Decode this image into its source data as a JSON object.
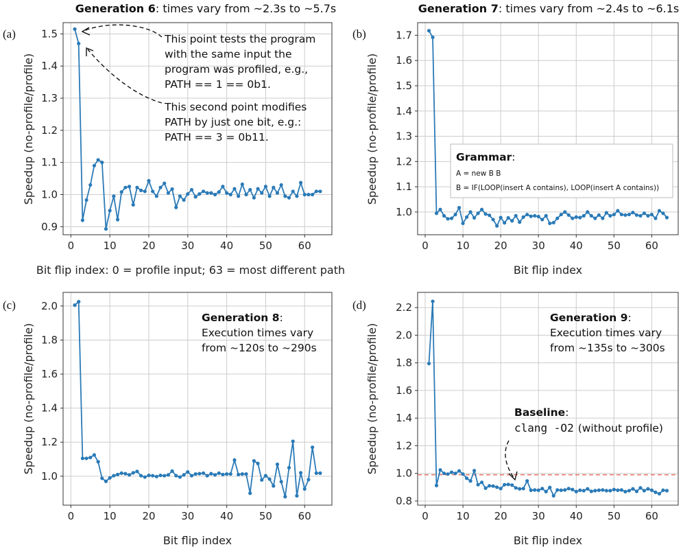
{
  "chart_data": [
    {
      "id": "a",
      "type": "line",
      "panel_label": "(a)",
      "title_bold": "Generation 6",
      "title_rest": ": times vary from ~2.3s to ~5.7s",
      "xlabel": "Bit flip index: 0 = profile input; 63 = most different path",
      "ylabel": "Speedup (no-profile/profile)",
      "xlim": [
        -2,
        67
      ],
      "ylim": [
        0.875,
        1.535
      ],
      "xticks": [
        0,
        10,
        20,
        30,
        40,
        50,
        60
      ],
      "yticks": [
        0.9,
        1.0,
        1.1,
        1.2,
        1.3,
        1.4,
        1.5
      ],
      "ytick_labels": [
        "0.9",
        "1.0",
        "1.1",
        "1.2",
        "1.3",
        "1.4",
        "1.5"
      ],
      "grid": true,
      "x": [
        1,
        2,
        3,
        4,
        5,
        6,
        7,
        8,
        9,
        10,
        11,
        12,
        13,
        14,
        15,
        16,
        17,
        18,
        19,
        20,
        21,
        22,
        23,
        24,
        25,
        26,
        27,
        28,
        29,
        30,
        31,
        32,
        33,
        34,
        35,
        36,
        37,
        38,
        39,
        40,
        41,
        42,
        43,
        44,
        45,
        46,
        47,
        48,
        49,
        50,
        51,
        52,
        53,
        54,
        55,
        56,
        57,
        58,
        59,
        60,
        61,
        62,
        63,
        64
      ],
      "values": [
        1.515,
        1.47,
        0.92,
        0.983,
        1.03,
        1.09,
        1.108,
        1.1,
        0.893,
        0.95,
        0.995,
        0.922,
        1.008,
        1.022,
        1.025,
        0.968,
        1.022,
        1.013,
        1.01,
        1.043,
        1.01,
        0.995,
        1.022,
        1.035,
        1.005,
        1.017,
        0.96,
        0.995,
        0.983,
        1.002,
        1.015,
        0.993,
        1.002,
        1.01,
        1.005,
        1.005,
        1.0,
        1.008,
        1.025,
        1.005,
        1.0,
        1.018,
        0.995,
        1.032,
        1.0,
        1.015,
        0.99,
        1.018,
        1.005,
        1.025,
        0.995,
        1.022,
        1.005,
        1.03,
        0.995,
        0.99,
        1.01,
        0.995,
        1.037,
        1.0,
        1.0,
        1.0,
        1.01,
        1.01
      ],
      "annotations": [
        "This point tests the program",
        "with the same input the",
        "program was profiled, e.g.,",
        "PATH == 1 == 0b1.",
        "This second point modifies",
        "PATH by just one bit, e.g.:",
        "PATH == 3 = 0b11."
      ]
    },
    {
      "id": "b",
      "type": "line",
      "panel_label": "(b)",
      "title_bold": "Generation 7",
      "title_rest": ": times vary from ~2.4s to ~6.1s",
      "xlabel": "Bit flip index",
      "ylabel": "Speedup (no-profile/profile)",
      "xlim": [
        -2,
        67
      ],
      "ylim": [
        0.91,
        1.75
      ],
      "xticks": [
        0,
        10,
        20,
        30,
        40,
        50,
        60
      ],
      "yticks": [
        1.0,
        1.1,
        1.2,
        1.3,
        1.4,
        1.5,
        1.6,
        1.7
      ],
      "ytick_labels": [
        "1.0",
        "1.1",
        "1.2",
        "1.3",
        "1.4",
        "1.5",
        "1.6",
        "1.7"
      ],
      "grid": true,
      "x": [
        1,
        2,
        3,
        4,
        5,
        6,
        7,
        8,
        9,
        10,
        11,
        12,
        13,
        14,
        15,
        16,
        17,
        18,
        19,
        20,
        21,
        22,
        23,
        24,
        25,
        26,
        27,
        28,
        29,
        30,
        31,
        32,
        33,
        34,
        35,
        36,
        37,
        38,
        39,
        40,
        41,
        42,
        43,
        44,
        45,
        46,
        47,
        48,
        49,
        50,
        51,
        52,
        53,
        54,
        55,
        56,
        57,
        58,
        59,
        60,
        61,
        62,
        63,
        64
      ],
      "values": [
        1.718,
        1.692,
        0.995,
        1.01,
        0.985,
        0.973,
        0.975,
        0.99,
        1.017,
        0.955,
        0.98,
        1.0,
        0.977,
        0.995,
        1.01,
        0.992,
        0.987,
        0.97,
        0.945,
        0.978,
        0.957,
        0.977,
        0.965,
        0.985,
        0.96,
        0.98,
        0.99,
        0.983,
        0.985,
        0.982,
        0.97,
        0.985,
        0.955,
        0.958,
        0.975,
        0.99,
        1.0,
        0.988,
        0.975,
        0.98,
        0.978,
        0.985,
        1.0,
        0.985,
        0.975,
        0.988,
        0.975,
        0.997,
        0.985,
        0.99,
        1.005,
        0.99,
        0.988,
        0.99,
        0.998,
        0.988,
        0.985,
        0.995,
        0.985,
        0.99,
        0.975,
        1.005,
        0.995,
        0.978
      ],
      "legend_box": {
        "title_bold": "Grammar",
        "title_rest": ":",
        "lines": [
          "A = new B B",
          "B = IF(LOOP(insert A contains), LOOP(insert A contains))"
        ]
      }
    },
    {
      "id": "c",
      "type": "line",
      "panel_label": "(c)",
      "xlabel": "Bit flip index",
      "ylabel": "Speedup (no-profile/profile)",
      "xlim": [
        -2,
        67
      ],
      "ylim": [
        0.83,
        2.08
      ],
      "xticks": [
        0,
        10,
        20,
        30,
        40,
        50,
        60
      ],
      "yticks": [
        1.0,
        1.2,
        1.4,
        1.6,
        1.8,
        2.0
      ],
      "ytick_labels": [
        "1.0",
        "1.2",
        "1.4",
        "1.6",
        "1.8",
        "2.0"
      ],
      "grid": true,
      "x": [
        1,
        2,
        3,
        4,
        5,
        6,
        7,
        8,
        9,
        10,
        11,
        12,
        13,
        14,
        15,
        16,
        17,
        18,
        19,
        20,
        21,
        22,
        23,
        24,
        25,
        26,
        27,
        28,
        29,
        30,
        31,
        32,
        33,
        34,
        35,
        36,
        37,
        38,
        39,
        40,
        41,
        42,
        43,
        44,
        45,
        46,
        47,
        48,
        49,
        50,
        51,
        52,
        53,
        54,
        55,
        56,
        57,
        58,
        59,
        60,
        61,
        62,
        63,
        64
      ],
      "values": [
        2.005,
        2.025,
        1.105,
        1.105,
        1.11,
        1.125,
        1.085,
        0.988,
        0.97,
        0.99,
        1.003,
        1.01,
        1.018,
        1.015,
        1.008,
        1.02,
        1.028,
        1.003,
        0.995,
        1.005,
        1.003,
        0.998,
        1.005,
        1.003,
        1.008,
        1.03,
        1.003,
        0.995,
        1.008,
        1.025,
        1.003,
        1.013,
        1.015,
        1.018,
        1.003,
        1.015,
        1.008,
        1.018,
        1.01,
        1.013,
        1.013,
        1.095,
        1.01,
        1.013,
        1.013,
        0.9,
        1.09,
        1.075,
        0.978,
        1.003,
        0.983,
        0.943,
        1.07,
        0.968,
        0.88,
        1.05,
        1.205,
        0.885,
        1.02,
        0.925,
        0.98,
        1.17,
        1.018,
        1.018
      ],
      "annotations": [
        "Generation 8",
        ":",
        "Execution times vary",
        "from ~120s to ~290s"
      ]
    },
    {
      "id": "d",
      "type": "line",
      "panel_label": "(d)",
      "xlabel": "Bit flip index",
      "ylabel": "Speedup (no-profile/profile)",
      "xlim": [
        -2,
        67
      ],
      "ylim": [
        0.77,
        2.31
      ],
      "xticks": [
        0,
        10,
        20,
        30,
        40,
        50,
        60
      ],
      "yticks": [
        0.8,
        1.0,
        1.2,
        1.4,
        1.6,
        1.8,
        2.0,
        2.2
      ],
      "ytick_labels": [
        "0.8",
        "1.0",
        "1.2",
        "1.4",
        "1.6",
        "1.8",
        "2.0",
        "2.2"
      ],
      "grid": true,
      "baseline": 0.99,
      "x": [
        1,
        2,
        3,
        4,
        5,
        6,
        7,
        8,
        9,
        10,
        11,
        12,
        13,
        14,
        15,
        16,
        17,
        18,
        19,
        20,
        21,
        22,
        23,
        24,
        25,
        26,
        27,
        28,
        29,
        30,
        31,
        32,
        33,
        34,
        35,
        36,
        37,
        38,
        39,
        40,
        41,
        42,
        43,
        44,
        45,
        46,
        47,
        48,
        49,
        50,
        51,
        52,
        53,
        54,
        55,
        56,
        57,
        58,
        59,
        60,
        61,
        62,
        63,
        64
      ],
      "values": [
        1.795,
        2.245,
        0.912,
        1.025,
        1.0,
        0.995,
        1.008,
        1.0,
        1.018,
        0.995,
        0.965,
        0.945,
        1.02,
        0.918,
        0.935,
        0.893,
        0.91,
        0.908,
        0.9,
        0.89,
        0.918,
        0.92,
        0.915,
        0.895,
        0.888,
        0.89,
        0.945,
        0.878,
        0.88,
        0.878,
        0.89,
        0.868,
        0.898,
        0.838,
        0.88,
        0.878,
        0.88,
        0.89,
        0.883,
        0.868,
        0.878,
        0.875,
        0.888,
        0.87,
        0.875,
        0.878,
        0.88,
        0.875,
        0.875,
        0.883,
        0.878,
        0.88,
        0.868,
        0.875,
        0.888,
        0.87,
        0.895,
        0.875,
        0.888,
        0.878,
        0.863,
        0.853,
        0.878,
        0.875
      ],
      "annotations": [
        "Generation 9",
        ":",
        "Execution times vary",
        "from ~135s to ~300s",
        "Baseline",
        ":",
        "clang -O2",
        "(without profile)"
      ]
    }
  ]
}
